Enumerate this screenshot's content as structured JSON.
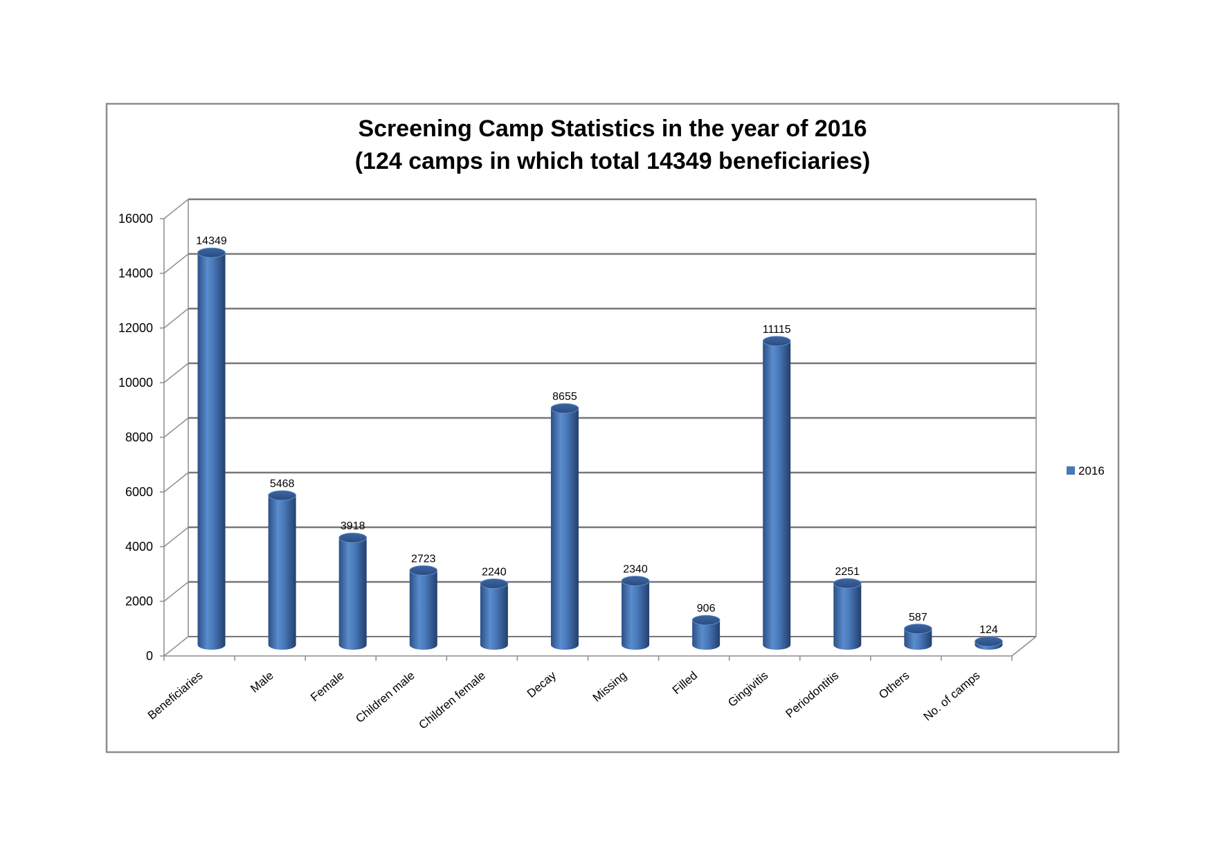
{
  "chart_data": {
    "type": "bar",
    "style": "3d-cylinder",
    "title_line1": "Screening Camp Statistics in the year of 2016",
    "title_line2": "(124 camps in which total 14349 beneficiaries)",
    "categories": [
      "Beneficiaries",
      "Male",
      "Female",
      "Children male",
      "Children female",
      "Decay",
      "Missing",
      "Filled",
      "Gingivitis",
      "Periodontitis",
      "Others",
      "No. of camps"
    ],
    "series": [
      {
        "name": "2016",
        "color": "#4a78b8",
        "values": [
          14349,
          5468,
          3918,
          2723,
          2240,
          8655,
          2340,
          906,
          11115,
          2251,
          587,
          124
        ]
      }
    ],
    "ylim": [
      0,
      16000
    ],
    "yticks": [
      "0",
      "2000",
      "4000",
      "6000",
      "8000",
      "10000",
      "12000",
      "14000",
      "16000"
    ],
    "grid": true,
    "legend_position": "right"
  }
}
